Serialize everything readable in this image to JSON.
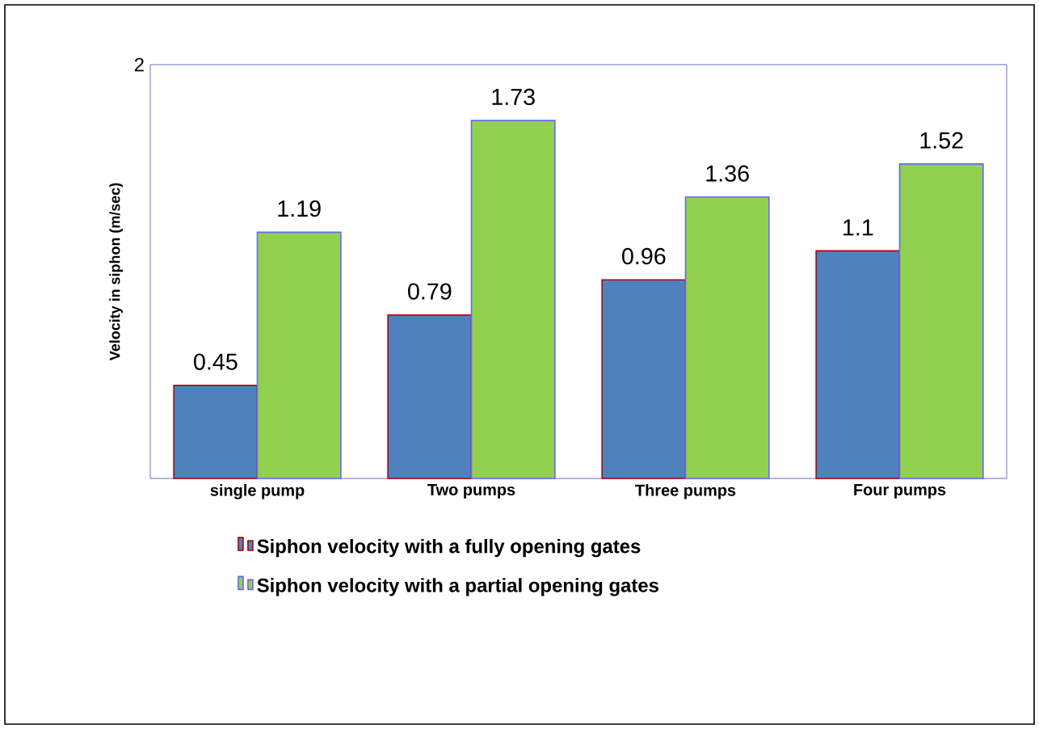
{
  "chart_data": {
    "type": "bar",
    "ylabel": "Velocity in siphon (m/sec)",
    "categories": [
      "single pump",
      "Two pumps",
      "Three pumps",
      "Four pumps"
    ],
    "series": [
      {
        "name": "Siphon velocity with a fully opening gates",
        "color": "#4f81bd",
        "values": [
          0.45,
          0.79,
          0.96,
          1.1
        ]
      },
      {
        "name": "Siphon velocity with a partial opening gates",
        "color": "#92d050",
        "values": [
          1.19,
          1.73,
          1.36,
          1.52
        ]
      }
    ],
    "ylim": [
      0,
      2
    ],
    "yticks": [
      2
    ],
    "data_labels": true,
    "legend": "bottom",
    "grid": false
  }
}
